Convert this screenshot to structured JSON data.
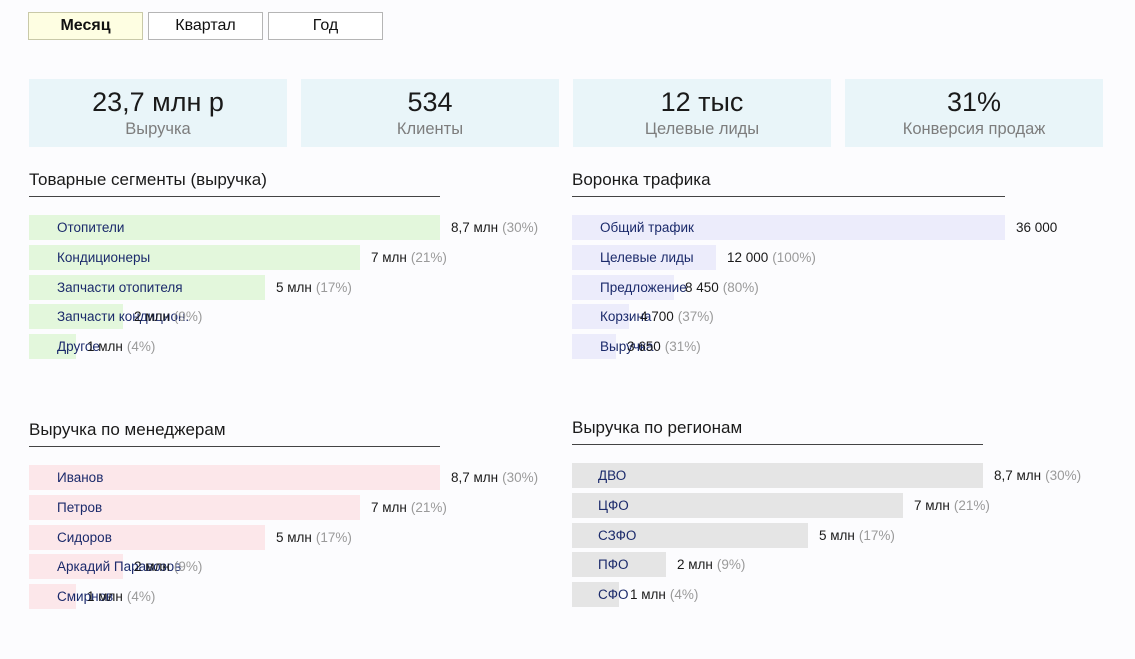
{
  "tabs": [
    {
      "label": "Месяц",
      "active": true
    },
    {
      "label": "Квартал",
      "active": false
    },
    {
      "label": "Год",
      "active": false
    }
  ],
  "kpis": [
    {
      "value": "23,7 млн р",
      "label": "Выручка"
    },
    {
      "value": "534",
      "label": "Клиенты"
    },
    {
      "value": "12 тыс",
      "label": "Целевые лиды"
    },
    {
      "value": "31%",
      "label": "Конверсия продаж"
    }
  ],
  "chart_data": [
    {
      "type": "bar",
      "orientation": "horizontal",
      "title": "Товарные сегменты (выручка)",
      "color": "#e3f7dc",
      "categories": [
        "Отопители",
        "Кондиционеры",
        "Запчасти отопителя",
        "Запчасти кондицион.",
        "Другое"
      ],
      "values": [
        8.7,
        7,
        5,
        2,
        1
      ],
      "value_labels": [
        "8,7 млн",
        "7 млн",
        "5 млн",
        "2 млн",
        "1 млн"
      ],
      "percent_labels": [
        "(30%)",
        "(21%)",
        "(17%)",
        "(9%)",
        "(4%)"
      ]
    },
    {
      "type": "bar",
      "orientation": "horizontal",
      "title": "Воронка трафика",
      "color": "#ececfb",
      "categories": [
        "Общий трафик",
        "Целевые лиды",
        "Предложение",
        "Корзина",
        "Выручка"
      ],
      "values": [
        36000,
        12000,
        8450,
        4700,
        3650
      ],
      "value_labels": [
        "36 000",
        "12 000",
        "8 450",
        "4 700",
        "3 650"
      ],
      "percent_labels": [
        "",
        "(100%)",
        "(80%)",
        "(37%)",
        "(31%)"
      ]
    },
    {
      "type": "bar",
      "orientation": "horizontal",
      "title": "Выручка по менеджерам",
      "color": "#fce7ea",
      "categories": [
        "Иванов",
        "Петров",
        "Сидоров",
        "Аркадий Паравозов",
        "Смирнов"
      ],
      "values": [
        8.7,
        7,
        5,
        2,
        1
      ],
      "value_labels": [
        "8,7 млн",
        "7 млн",
        "5 млн",
        "2 млн",
        "1 млн"
      ],
      "percent_labels": [
        "(30%)",
        "(21%)",
        "(17%)",
        "(9%)",
        "(4%)"
      ]
    },
    {
      "type": "bar",
      "orientation": "horizontal",
      "title": "Выручка по регионам",
      "color": "#e5e5e5",
      "categories": [
        "ДВО",
        "ЦФО",
        "СЗФО",
        "ПФО",
        "СФО"
      ],
      "values": [
        8.7,
        7,
        5,
        2,
        1
      ],
      "value_labels": [
        "8,7 млн",
        "7 млн",
        "5 млн",
        "2 млн",
        "1 млн"
      ],
      "percent_labels": [
        "(30%)",
        "(21%)",
        "(17%)",
        "(9%)",
        "(4%)"
      ]
    }
  ]
}
